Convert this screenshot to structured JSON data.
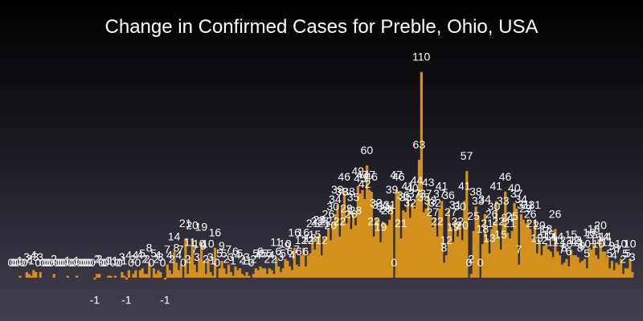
{
  "chart_data": {
    "type": "bar",
    "title": "Change in Confirmed Cases for Preble, Ohio, USA",
    "xlabel": "",
    "ylabel": "",
    "ylim": [
      -4,
      118
    ],
    "grid": false,
    "legend": "none",
    "bar_color": "#d4901c",
    "label_color": "#ffffff",
    "values": [
      0,
      0,
      0,
      0,
      1,
      0,
      0,
      3,
      2,
      1,
      4,
      3,
      0,
      3,
      0,
      0,
      0,
      0,
      0,
      2,
      0,
      0,
      0,
      0,
      0,
      1,
      0,
      0,
      0,
      1,
      0,
      0,
      0,
      0,
      0,
      0,
      0,
      -1,
      2,
      2,
      0,
      0,
      0,
      1,
      1,
      0,
      1,
      0,
      0,
      3,
      1,
      -1,
      4,
      0,
      2,
      4,
      0,
      4,
      5,
      2,
      2,
      8,
      0,
      5,
      2,
      4,
      3,
      0,
      -1,
      7,
      4,
      2,
      14,
      8,
      4,
      7,
      0,
      21,
      2,
      11,
      20,
      7,
      3,
      10,
      19,
      9,
      2,
      10,
      3,
      1,
      16,
      0,
      5,
      9,
      5,
      2,
      7,
      3,
      1,
      6,
      4,
      5,
      2,
      1,
      3,
      1,
      0,
      2,
      5,
      4,
      6,
      5,
      5,
      2,
      5,
      4,
      2,
      11,
      6,
      3,
      5,
      10,
      9,
      6,
      4,
      16,
      7,
      6,
      12,
      16,
      6,
      12,
      13,
      21,
      15,
      22,
      23,
      12,
      21,
      22,
      26,
      20,
      30,
      34,
      39,
      22,
      38,
      46,
      29,
      38,
      26,
      35,
      28,
      49,
      45,
      47,
      42,
      60,
      47,
      46,
      22,
      32,
      31,
      19,
      30,
      29,
      28,
      31,
      39,
      0,
      47,
      46,
      21,
      36,
      35,
      41,
      32,
      40,
      37,
      44,
      63,
      110,
      35,
      37,
      43,
      33,
      27,
      32,
      22,
      37,
      41,
      8,
      12,
      36,
      27,
      19,
      31,
      22,
      30,
      20,
      41,
      57,
      0,
      2,
      25,
      38,
      33,
      0,
      18,
      34,
      21,
      13,
      26,
      30,
      41,
      22,
      15,
      33,
      46,
      24,
      21,
      25,
      40,
      37,
      7,
      34,
      31,
      29,
      31,
      26,
      21,
      31,
      13,
      20,
      12,
      17,
      18,
      15,
      14,
      11,
      26,
      14,
      12,
      7,
      8,
      10,
      6,
      15,
      12,
      12,
      11,
      8,
      9,
      10,
      5,
      16,
      15,
      18,
      12,
      10,
      20,
      14,
      14,
      11,
      5,
      9,
      4,
      8,
      7,
      10,
      2,
      5,
      5,
      10,
      3
    ]
  }
}
